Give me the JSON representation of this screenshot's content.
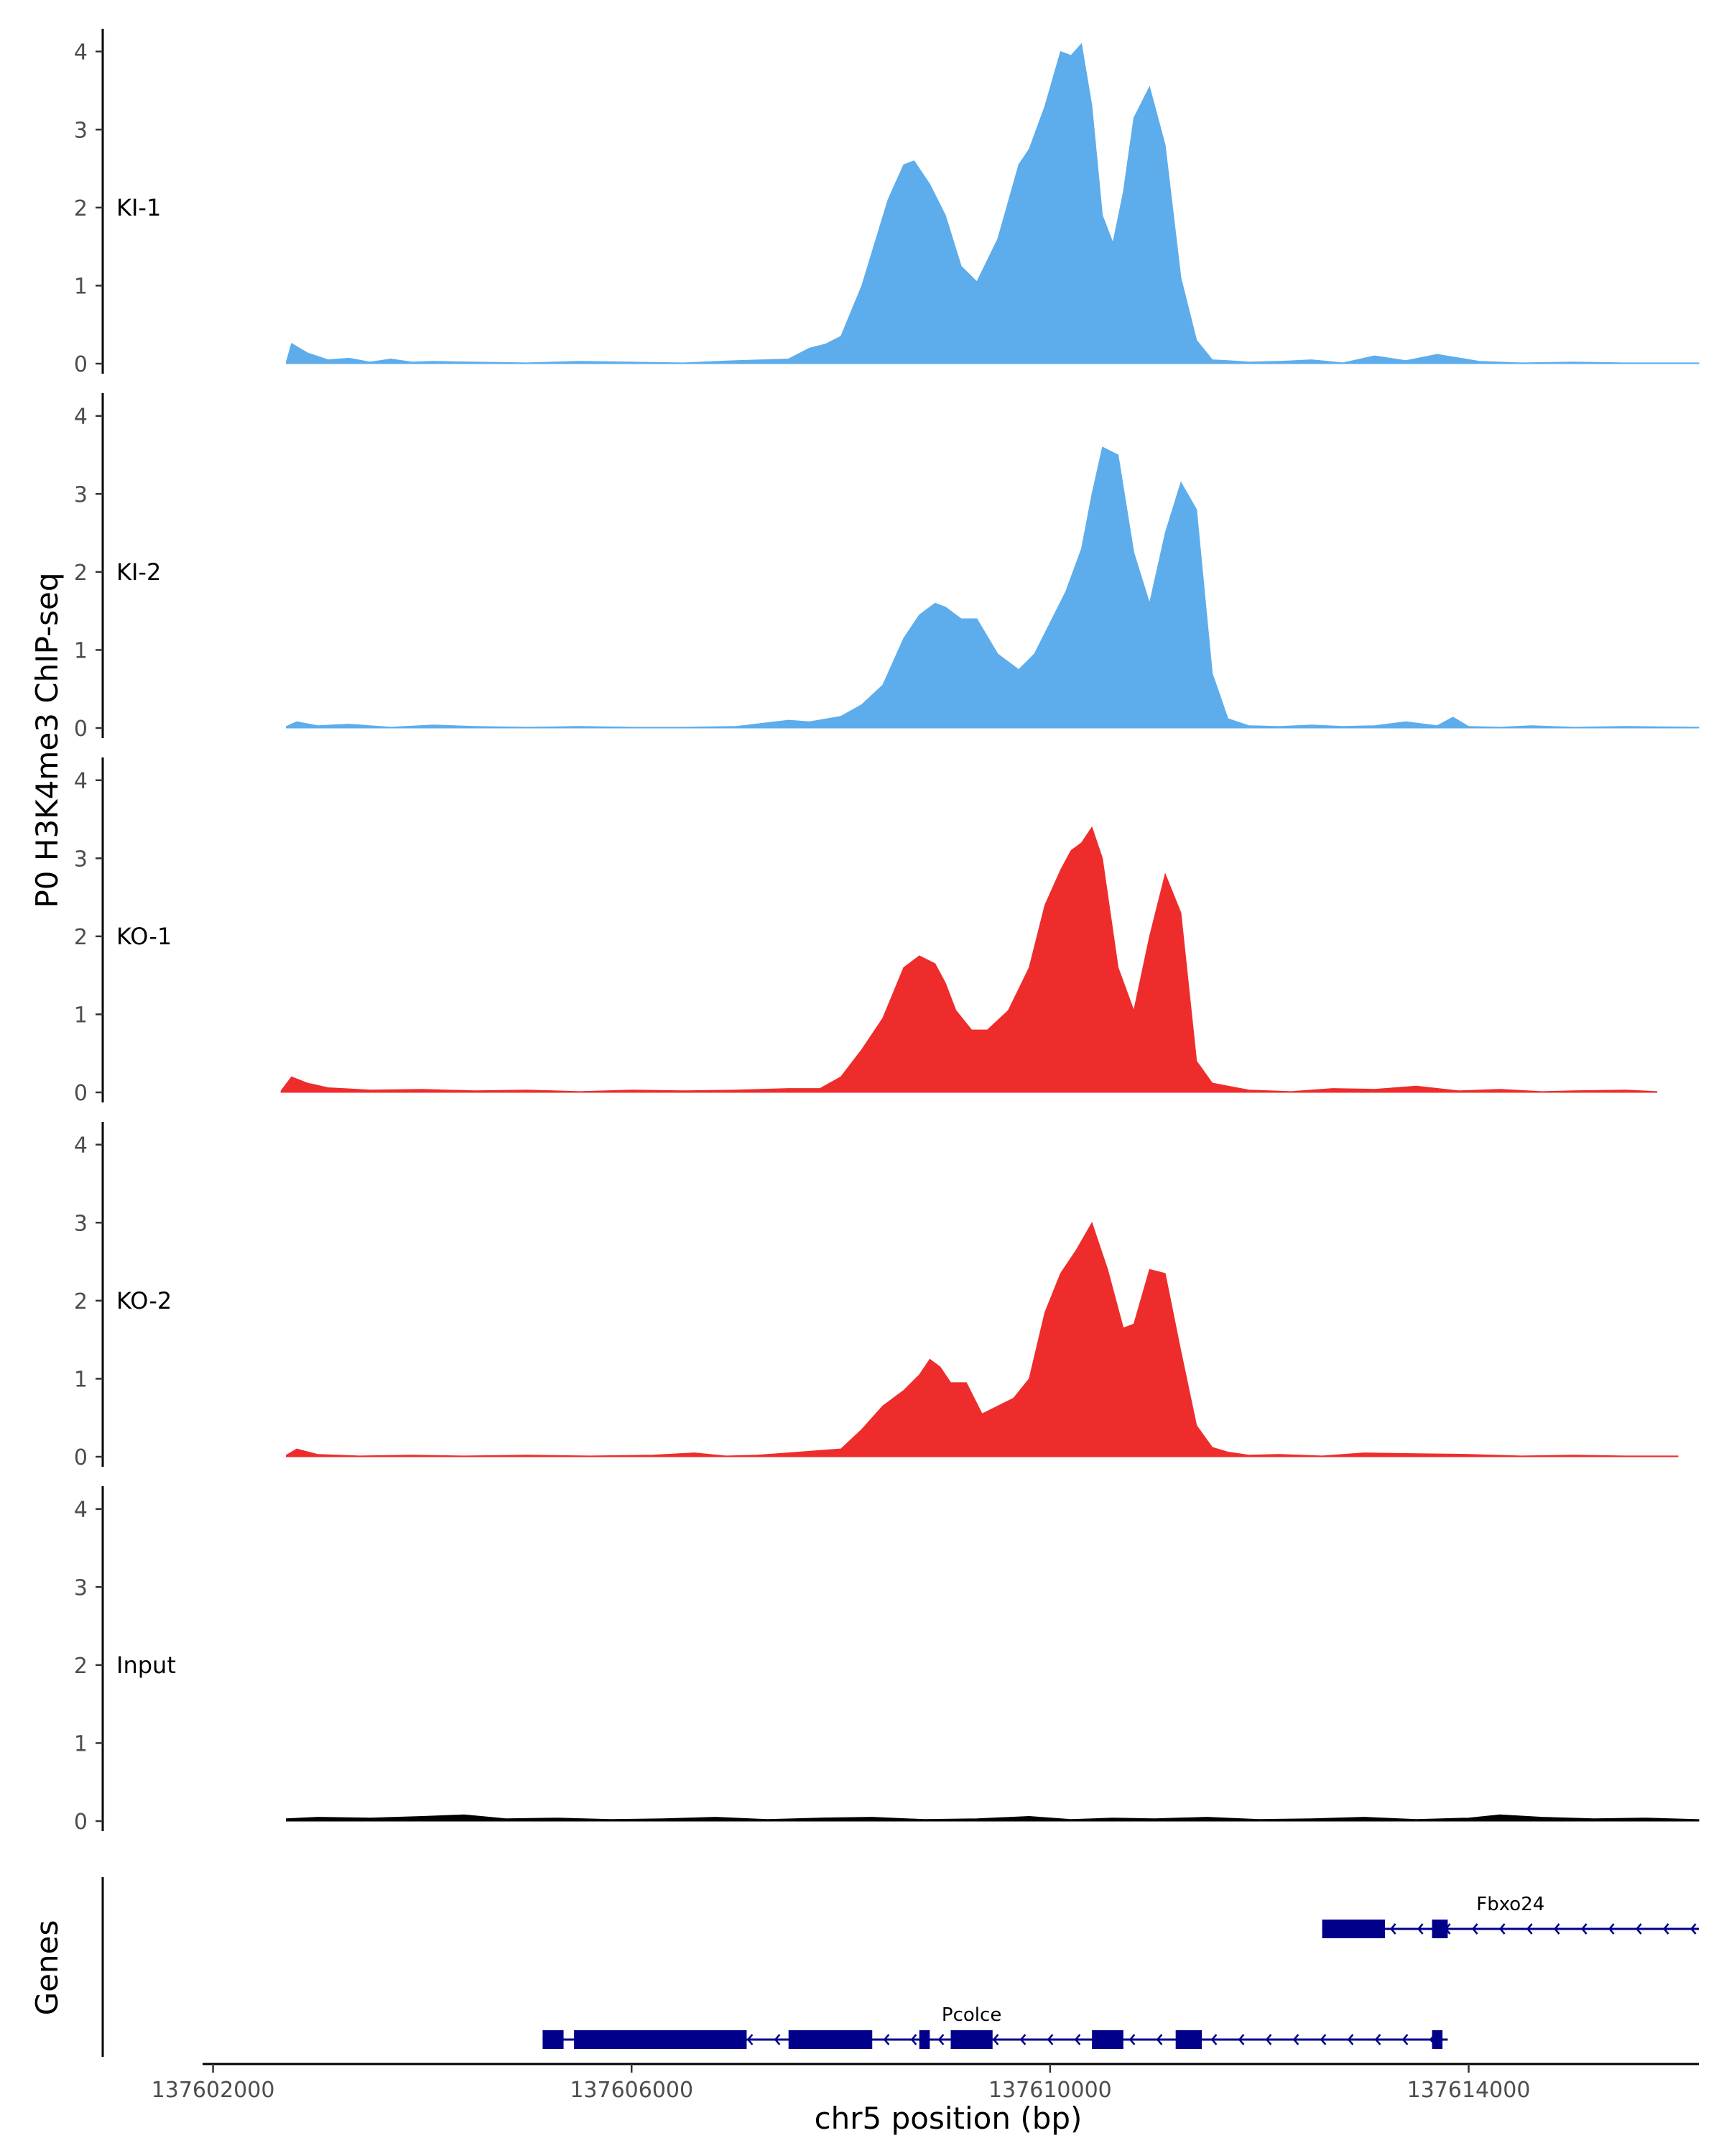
{
  "chart_data": {
    "type": "area",
    "ylabel": "P0 H3K4me3 ChIP-seq",
    "xlabel": "chr5 position (bp)",
    "ylim": [
      0,
      4.2
    ],
    "y_ticks": [
      "0",
      "1",
      "2",
      "3",
      "4"
    ],
    "x_range": [
      137601900,
      137616200
    ],
    "x_ticks": [
      {
        "value": 137602000,
        "label": "137602000"
      },
      {
        "value": 137606000,
        "label": "137606000"
      },
      {
        "value": 137610000,
        "label": "137610000"
      },
      {
        "value": 137614000,
        "label": "137614000"
      }
    ],
    "grid": false,
    "tracks": [
      {
        "name": "KI-1",
        "color": "#5DADEC",
        "x": [
          137602700,
          137602750,
          137602900,
          137603100,
          137603300,
          137603500,
          137603700,
          137603900,
          137604100,
          137604500,
          137605000,
          137605500,
          137606000,
          137606500,
          137607000,
          137607500,
          137607700,
          137607850,
          137608000,
          137608200,
          137608450,
          137608600,
          137608700,
          137608850,
          137609000,
          137609150,
          137609300,
          137609500,
          137609700,
          137609800,
          137609950,
          137610100,
          137610200,
          137610300,
          137610400,
          137610500,
          137610600,
          137610700,
          137610800,
          137610950,
          137611100,
          137611250,
          137611400,
          137611550,
          137611700,
          137611900,
          137612200,
          137612500,
          137612800,
          137613100,
          137613400,
          137613700,
          137614100,
          137614500,
          137615000,
          137615500,
          137616200
        ],
        "y": [
          0.02,
          0.26,
          0.14,
          0.05,
          0.07,
          0.02,
          0.06,
          0.02,
          0.03,
          0.02,
          0.01,
          0.03,
          0.02,
          0.01,
          0.04,
          0.06,
          0.2,
          0.25,
          0.35,
          1.0,
          2.1,
          2.55,
          2.6,
          2.3,
          1.9,
          1.25,
          1.05,
          1.6,
          2.55,
          2.75,
          3.3,
          4.0,
          3.95,
          4.1,
          3.3,
          1.9,
          1.55,
          2.2,
          3.15,
          3.55,
          2.8,
          1.1,
          0.3,
          0.05,
          0.04,
          0.02,
          0.03,
          0.05,
          0.01,
          0.1,
          0.04,
          0.12,
          0.03,
          0.01,
          0.02,
          0.01,
          0.01
        ]
      },
      {
        "name": "KI-2",
        "color": "#5DADEC",
        "x": [
          137602700,
          137602800,
          137603000,
          137603300,
          137603700,
          137604100,
          137604500,
          137605000,
          137605500,
          137606000,
          137606500,
          137607000,
          137607500,
          137607700,
          137608000,
          137608200,
          137608400,
          137608600,
          137608750,
          137608900,
          137609000,
          137609150,
          137609300,
          137609500,
          137609700,
          137609850,
          137610000,
          137610150,
          137610300,
          137610400,
          137610500,
          137610650,
          137610800,
          137610950,
          137611100,
          137611250,
          137611400,
          137611550,
          137611700,
          137611900,
          137612200,
          137612500,
          137612800,
          137613100,
          137613400,
          137613700,
          137613850,
          137614000,
          137614300,
          137614600,
          137615000,
          137615500,
          137616200
        ],
        "y": [
          0.02,
          0.08,
          0.03,
          0.05,
          0.01,
          0.04,
          0.02,
          0.01,
          0.02,
          0.01,
          0.01,
          0.02,
          0.1,
          0.08,
          0.15,
          0.3,
          0.55,
          1.15,
          1.45,
          1.6,
          1.55,
          1.4,
          1.4,
          0.95,
          0.75,
          0.95,
          1.35,
          1.75,
          2.3,
          3.0,
          3.6,
          3.5,
          2.25,
          1.6,
          2.5,
          3.15,
          2.8,
          0.7,
          0.12,
          0.03,
          0.02,
          0.04,
          0.02,
          0.03,
          0.08,
          0.03,
          0.14,
          0.02,
          0.01,
          0.03,
          0.01,
          0.02,
          0.01
        ]
      },
      {
        "name": "KO-1",
        "color": "#EE2C2C",
        "x": [
          137602650,
          137602750,
          137602900,
          137603100,
          137603500,
          137604000,
          137604500,
          137605000,
          137605500,
          137606000,
          137606500,
          137607000,
          137607500,
          137607800,
          137608000,
          137608200,
          137608400,
          137608600,
          137608750,
          137608900,
          137609000,
          137609100,
          137609250,
          137609400,
          137609600,
          137609800,
          137609950,
          137610100,
          137610200,
          137610300,
          137610400,
          137610500,
          137610650,
          137610800,
          137610950,
          137611100,
          137611250,
          137611400,
          137611550,
          137611700,
          137611900,
          137612100,
          137612300,
          137612700,
          137613100,
          137613500,
          137613900,
          137614300,
          137614700,
          137615000,
          137615500,
          137615800
        ],
        "y": [
          0.02,
          0.2,
          0.12,
          0.06,
          0.03,
          0.04,
          0.02,
          0.03,
          0.01,
          0.03,
          0.02,
          0.03,
          0.05,
          0.05,
          0.2,
          0.55,
          0.95,
          1.6,
          1.75,
          1.65,
          1.4,
          1.05,
          0.8,
          0.8,
          1.05,
          1.6,
          2.4,
          2.85,
          3.1,
          3.2,
          3.4,
          3.0,
          1.6,
          1.05,
          2.0,
          2.8,
          2.3,
          0.4,
          0.12,
          0.08,
          0.03,
          0.02,
          0.01,
          0.05,
          0.04,
          0.08,
          0.02,
          0.04,
          0.01,
          0.02,
          0.03,
          0.01
        ]
      },
      {
        "name": "KO-2",
        "color": "#EE2C2C",
        "x": [
          137602700,
          137602800,
          137603000,
          137603400,
          137603900,
          137604400,
          137605000,
          137605600,
          137606200,
          137606600,
          137606900,
          137607200,
          137607500,
          137607800,
          137608000,
          137608200,
          137608400,
          137608600,
          137608750,
          137608850,
          137608950,
          137609050,
          137609200,
          137609350,
          137609500,
          137609650,
          137609800,
          137609950,
          137610100,
          137610250,
          137610400,
          137610550,
          137610700,
          137610800,
          137610950,
          137611100,
          137611250,
          137611400,
          137611550,
          137611700,
          137611900,
          137612200,
          137612600,
          137613000,
          137613500,
          137614000,
          137614500,
          137615000,
          137615500,
          137616000
        ],
        "y": [
          0.02,
          0.1,
          0.03,
          0.01,
          0.02,
          0.01,
          0.02,
          0.01,
          0.02,
          0.05,
          0.01,
          0.02,
          0.05,
          0.08,
          0.1,
          0.35,
          0.65,
          0.85,
          1.05,
          1.25,
          1.15,
          0.95,
          0.95,
          0.55,
          0.65,
          0.75,
          1.0,
          1.85,
          2.35,
          2.65,
          3.0,
          2.4,
          1.65,
          1.7,
          2.4,
          2.35,
          1.35,
          0.4,
          0.12,
          0.06,
          0.02,
          0.03,
          0.01,
          0.05,
          0.04,
          0.03,
          0.01,
          0.02,
          0.01,
          0.01
        ]
      },
      {
        "name": "Input",
        "color": "#000000",
        "x": [
          137602700,
          137603000,
          137603500,
          137604000,
          137604400,
          137604800,
          137605300,
          137605800,
          137606300,
          137606800,
          137607300,
          137607800,
          137608300,
          137608800,
          137609300,
          137609800,
          137610200,
          137610600,
          137611000,
          137611500,
          137612000,
          137612500,
          137613000,
          137613500,
          137614000,
          137614300,
          137614700,
          137615200,
          137615700,
          137616200
        ],
        "y": [
          0.03,
          0.05,
          0.04,
          0.06,
          0.08,
          0.03,
          0.04,
          0.02,
          0.03,
          0.05,
          0.02,
          0.04,
          0.05,
          0.02,
          0.03,
          0.06,
          0.02,
          0.04,
          0.03,
          0.05,
          0.02,
          0.03,
          0.05,
          0.02,
          0.04,
          0.08,
          0.05,
          0.03,
          0.04,
          0.02
        ]
      }
    ],
    "genes_label": "Genes",
    "genes": [
      {
        "name": "Fbxo24",
        "start": 137612600,
        "end": 137616200,
        "strand": "-",
        "row": 1,
        "exons": [
          [
            137612600,
            137613200
          ],
          [
            137613650,
            137613800
          ]
        ]
      },
      {
        "name": "Pcolce",
        "start": 137605150,
        "end": 137613800,
        "strand": "-",
        "row": 2,
        "exons": [
          [
            137605150,
            137605350
          ],
          [
            137605450,
            137607100
          ],
          [
            137607500,
            137608300
          ],
          [
            137608750,
            137608850
          ],
          [
            137609050,
            137609450
          ],
          [
            137610400,
            137610700
          ],
          [
            137611200,
            137611450
          ],
          [
            137613650,
            137613750
          ]
        ]
      }
    ]
  }
}
